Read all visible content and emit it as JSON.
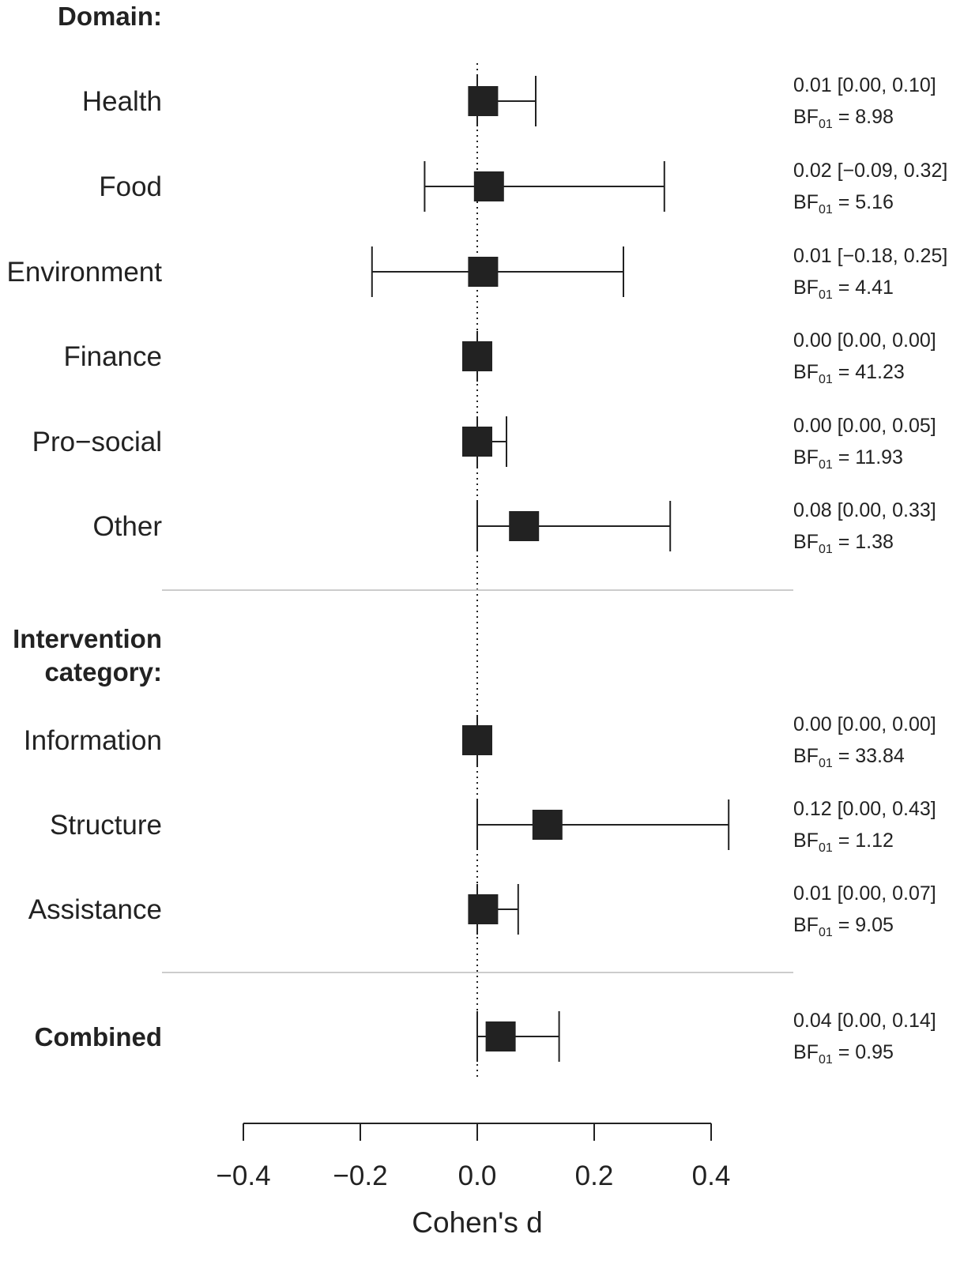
{
  "chart_data": {
    "type": "forest",
    "xlabel": "Cohen's d",
    "xlim": [
      -0.4,
      0.4
    ],
    "xticks": [
      -0.4,
      -0.2,
      0.0,
      0.2,
      0.4
    ],
    "xtick_labels": [
      "−0.4",
      "−0.2",
      "0.0",
      "0.2",
      "0.4"
    ],
    "reference_line": 0.0,
    "sections": [
      {
        "title": "Domain:",
        "rows": [
          {
            "label": "Health",
            "estimate": 0.01,
            "lower": 0.0,
            "upper": 0.1,
            "est_text": "0.01 [0.00, 0.10]",
            "bf_value": "8.98"
          },
          {
            "label": "Food",
            "estimate": 0.02,
            "lower": -0.09,
            "upper": 0.32,
            "est_text": "0.02 [−0.09, 0.32]",
            "bf_value": "5.16"
          },
          {
            "label": "Environment",
            "estimate": 0.01,
            "lower": -0.18,
            "upper": 0.25,
            "est_text": "0.01 [−0.18, 0.25]",
            "bf_value": "4.41"
          },
          {
            "label": "Finance",
            "estimate": 0.0,
            "lower": 0.0,
            "upper": 0.0,
            "est_text": "0.00 [0.00, 0.00]",
            "bf_value": "41.23"
          },
          {
            "label": "Pro−social",
            "estimate": 0.0,
            "lower": 0.0,
            "upper": 0.05,
            "est_text": "0.00 [0.00, 0.05]",
            "bf_value": "11.93"
          },
          {
            "label": "Other",
            "estimate": 0.08,
            "lower": 0.0,
            "upper": 0.33,
            "est_text": "0.08 [0.00, 0.33]",
            "bf_value": "1.38"
          }
        ]
      },
      {
        "title": "Intervention category:",
        "title_lines": [
          "Intervention",
          "category:"
        ],
        "rows": [
          {
            "label": "Information",
            "estimate": 0.0,
            "lower": 0.0,
            "upper": 0.0,
            "est_text": "0.00 [0.00, 0.00]",
            "bf_value": "33.84"
          },
          {
            "label": "Structure",
            "estimate": 0.12,
            "lower": 0.0,
            "upper": 0.43,
            "est_text": "0.12 [0.00, 0.43]",
            "bf_value": "1.12"
          },
          {
            "label": "Assistance",
            "estimate": 0.01,
            "lower": 0.0,
            "upper": 0.07,
            "est_text": "0.01 [0.00, 0.07]",
            "bf_value": "9.05"
          }
        ]
      }
    ],
    "combined": {
      "label": "Combined",
      "estimate": 0.04,
      "lower": 0.0,
      "upper": 0.14,
      "est_text": "0.04 [0.00, 0.14]",
      "bf_value": "0.95"
    },
    "bf_label": {
      "main": "BF",
      "sub": "01"
    }
  },
  "colors": {
    "ink": "#222222",
    "separator": "#cccccc"
  }
}
